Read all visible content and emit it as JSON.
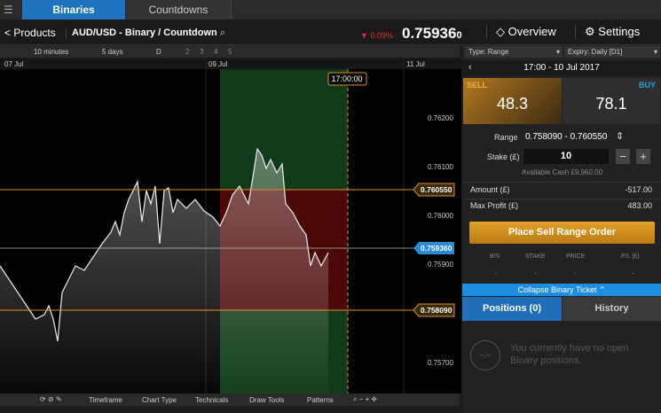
{
  "tabs": [
    "Binaries",
    "Countdowns"
  ],
  "header": {
    "back": "Products",
    "instrument": "AUD/USD - Binary / Countdown",
    "change": "▼ 0.09%",
    "price": "0.75936",
    "price_pip": "0",
    "overview": "Overview",
    "settings": "Settings"
  },
  "chart": {
    "interval": "10 minutes",
    "span": "5 days",
    "period": "D",
    "pages": [
      "2",
      "3",
      "4",
      "5"
    ],
    "dates": [
      "07 Jul",
      "09 Jul",
      "11 Jul"
    ],
    "axis_labels": [
      "0.76200",
      "0.76100",
      "0.76000",
      "0.75900",
      "0.75700"
    ],
    "expiry_label": "17:00:00",
    "levels": [
      "0.760550",
      "0.759360",
      "0.758090"
    ],
    "toolbar": [
      "Timeframe",
      "Chart Type",
      "Technicals",
      "Draw Tools",
      "Patterns"
    ]
  },
  "ticket": {
    "type": "Type: Range",
    "expiry": "Expiry: Daily [D1]",
    "time": "17:00 - 10 Jul 2017",
    "sell_label": "SELL",
    "sell": "48.3",
    "buy_label": "BUY",
    "buy": "78.1",
    "range_label": "Range",
    "range": "0.758090 - 0.760550",
    "stake_label": "Stake (£)",
    "stake": "10",
    "cash": "Available Cash £9,960.00",
    "amount_label": "Amount (£)",
    "amount": "-517.00",
    "profit_label": "Max Profit (£)",
    "profit": "483.00",
    "button": "Place Sell Range Order",
    "columns": [
      "B/S",
      "STAKE",
      "PRICE",
      "P/L (£)"
    ],
    "row": [
      "-",
      "-",
      "-",
      "-"
    ],
    "collapse": "Collapse Binary Ticket",
    "position_tabs": [
      "Positions (0)",
      "History"
    ],
    "empty_icon": "--:--",
    "empty": "You currently have no open Binary positions."
  }
}
